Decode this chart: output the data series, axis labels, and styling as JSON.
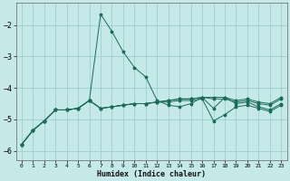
{
  "xlabel": "Humidex (Indice chaleur)",
  "background_color": "#c5e8e8",
  "grid_color": "#9ecece",
  "line_color": "#1a6b5a",
  "x": [
    0,
    1,
    2,
    3,
    4,
    5,
    6,
    7,
    8,
    9,
    10,
    11,
    12,
    13,
    14,
    15,
    16,
    17,
    18,
    19,
    20,
    21,
    22,
    23
  ],
  "xtick_labels": [
    "0",
    "1",
    "2",
    "3",
    "4",
    "5",
    "6",
    "7",
    "8",
    "9",
    "10",
    "11",
    "12",
    "13",
    "14",
    "15",
    "16",
    "17",
    "18",
    "19",
    "20",
    "21",
    "22",
    "23"
  ],
  "line1_spike": [
    -5.8,
    -5.35,
    -5.05,
    -4.7,
    -4.7,
    -4.65,
    -4.4,
    -1.65,
    -2.2,
    -2.85,
    -3.35,
    -3.65,
    -4.4,
    -4.55,
    -4.6,
    -4.5,
    -4.3,
    -4.65,
    -4.3,
    -4.5,
    -4.45,
    -4.6,
    -4.7,
    -4.5
  ],
  "line2_mid": [
    -5.8,
    -5.35,
    -5.05,
    -4.7,
    -4.7,
    -4.65,
    -4.4,
    -4.65,
    -4.6,
    -4.55,
    -4.5,
    -4.5,
    -4.45,
    -4.45,
    -4.4,
    -4.4,
    -4.35,
    -5.05,
    -4.85,
    -4.6,
    -4.55,
    -4.65,
    -4.75,
    -4.55
  ],
  "line3_flat": [
    -5.8,
    -5.35,
    -5.05,
    -4.7,
    -4.7,
    -4.65,
    -4.4,
    -4.65,
    -4.6,
    -4.55,
    -4.5,
    -4.5,
    -4.45,
    -4.4,
    -4.35,
    -4.35,
    -4.3,
    -4.35,
    -4.35,
    -4.45,
    -4.4,
    -4.5,
    -4.55,
    -4.35
  ],
  "line4_base": [
    -5.8,
    -5.35,
    -5.05,
    -4.7,
    -4.7,
    -4.65,
    -4.4,
    -4.65,
    -4.6,
    -4.55,
    -4.5,
    -4.5,
    -4.45,
    -4.4,
    -4.35,
    -4.35,
    -4.3,
    -4.3,
    -4.3,
    -4.4,
    -4.35,
    -4.45,
    -4.5,
    -4.3
  ],
  "ylim": [
    -6.3,
    -1.3
  ],
  "yticks": [
    -6,
    -5,
    -4,
    -3,
    -2
  ],
  "xlim": [
    -0.5,
    23.5
  ]
}
